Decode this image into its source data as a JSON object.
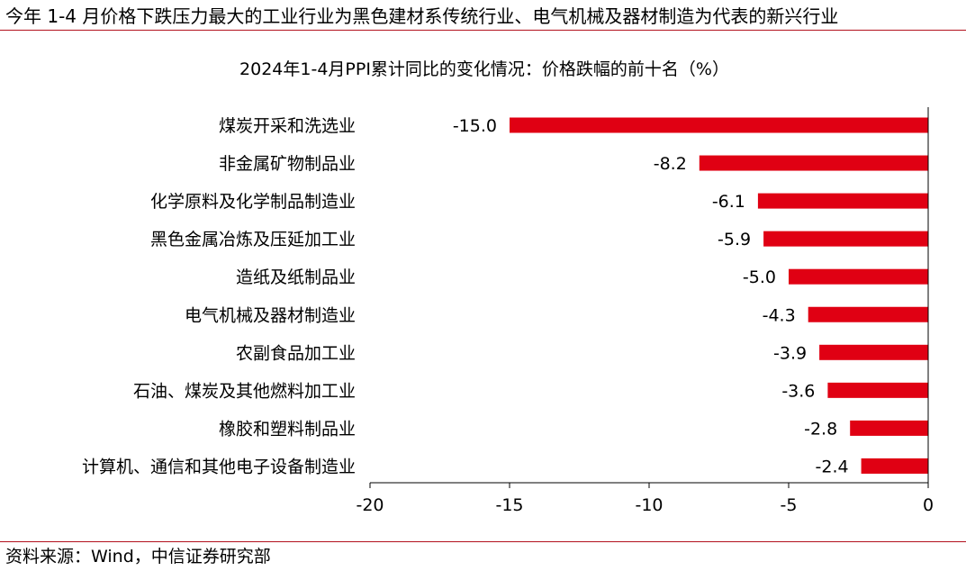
{
  "header": {
    "text": "今年 1-4 月价格下跌压力最大的工业行业为黑色建材系传统行业、电气机械及器材制造为代表的新兴行业"
  },
  "footer": {
    "source": "资料来源：Wind，中信证券研究部"
  },
  "colors": {
    "bar": "#e00013",
    "rule": "#b3111d"
  },
  "chart_data": {
    "type": "bar",
    "orientation": "horizontal",
    "title": "2024年1-4月PPI累计同比的变化情况：价格跌幅的前十名（%）",
    "categories": [
      "煤炭开采和洗选业",
      "非金属矿物制品业",
      "化学原料及化学制品制造业",
      "黑色金属冶炼及压延加工业",
      "造纸及纸制品业",
      "电气机械及器材制造业",
      "农副食品加工业",
      "石油、煤炭及其他燃料加工业",
      "橡胶和塑料制品业",
      "计算机、通信和其他电子设备制造业"
    ],
    "values": [
      -15.0,
      -8.2,
      -6.1,
      -5.9,
      -5.0,
      -4.3,
      -3.9,
      -3.6,
      -2.8,
      -2.4
    ],
    "value_labels": [
      "-15.0",
      "-8.2",
      "-6.1",
      "-5.9",
      "-5.0",
      "-4.3",
      "-3.9",
      "-3.6",
      "-2.8",
      "-2.4"
    ],
    "xlim": [
      -20,
      0
    ],
    "xticks": [
      -20,
      -15,
      -10,
      -5,
      0
    ],
    "xtick_labels": [
      "-20",
      "-15",
      "-10",
      "-5",
      "0"
    ],
    "grid": false,
    "legend": "none"
  }
}
